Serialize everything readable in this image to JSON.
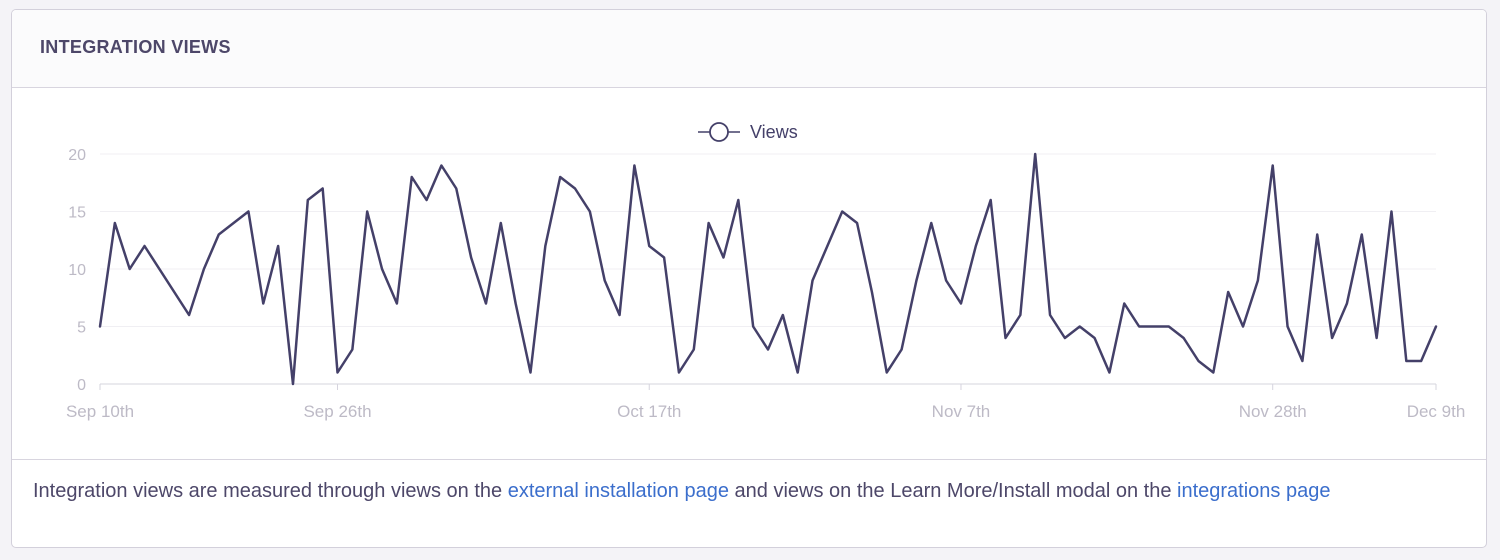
{
  "panel": {
    "title": "INTEGRATION VIEWS"
  },
  "footer": {
    "text_before": "Integration views are measured through views on the ",
    "link1": "external installation page",
    "text_middle": " and views on the Learn More/Install modal on the ",
    "link2": "integrations page"
  },
  "colors": {
    "line": "#444069",
    "axis_text": "#bdbac6",
    "grid": "#f0eff3",
    "legend_text": "#444069",
    "link": "#3b6ecc"
  },
  "chart_data": {
    "type": "line",
    "title": "",
    "xlabel": "",
    "ylabel": "",
    "legend": [
      "Views"
    ],
    "legend_position": "top-center",
    "grid": true,
    "ylim": [
      0,
      20
    ],
    "y_ticks": [
      0,
      5,
      10,
      15,
      20
    ],
    "x_tick_labels": [
      {
        "label": "Sep 10th",
        "date": "2017-09-10"
      },
      {
        "label": "Sep 26th",
        "date": "2017-09-26"
      },
      {
        "label": "Oct 17th",
        "date": "2017-10-17"
      },
      {
        "label": "Nov 7th",
        "date": "2017-11-07"
      },
      {
        "label": "Nov 28th",
        "date": "2017-11-28"
      },
      {
        "label": "Dec 9th",
        "date": "2017-12-09"
      }
    ],
    "series": [
      {
        "name": "Views",
        "points": [
          [
            "2017-09-10",
            5
          ],
          [
            "2017-09-11",
            14
          ],
          [
            "2017-09-12",
            10
          ],
          [
            "2017-09-13",
            12
          ],
          [
            "2017-09-16",
            6
          ],
          [
            "2017-09-17",
            10
          ],
          [
            "2017-09-18",
            13
          ],
          [
            "2017-09-20",
            15
          ],
          [
            "2017-09-21",
            7
          ],
          [
            "2017-09-22",
            12
          ],
          [
            "2017-09-23",
            0
          ],
          [
            "2017-09-24",
            16
          ],
          [
            "2017-09-25",
            17
          ],
          [
            "2017-09-26",
            1
          ],
          [
            "2017-09-27",
            3
          ],
          [
            "2017-09-28",
            15
          ],
          [
            "2017-09-29",
            10
          ],
          [
            "2017-09-30",
            7
          ],
          [
            "2017-10-01",
            18
          ],
          [
            "2017-10-02",
            16
          ],
          [
            "2017-10-03",
            19
          ],
          [
            "2017-10-04",
            17
          ],
          [
            "2017-10-05",
            11
          ],
          [
            "2017-10-06",
            7
          ],
          [
            "2017-10-07",
            14
          ],
          [
            "2017-10-08",
            7
          ],
          [
            "2017-10-09",
            1
          ],
          [
            "2017-10-10",
            12
          ],
          [
            "2017-10-11",
            18
          ],
          [
            "2017-10-12",
            17
          ],
          [
            "2017-10-13",
            15
          ],
          [
            "2017-10-14",
            9
          ],
          [
            "2017-10-15",
            6
          ],
          [
            "2017-10-16",
            19
          ],
          [
            "2017-10-17",
            12
          ],
          [
            "2017-10-18",
            11
          ],
          [
            "2017-10-19",
            1
          ],
          [
            "2017-10-20",
            3
          ],
          [
            "2017-10-21",
            14
          ],
          [
            "2017-10-22",
            11
          ],
          [
            "2017-10-23",
            16
          ],
          [
            "2017-10-24",
            5
          ],
          [
            "2017-10-25",
            3
          ],
          [
            "2017-10-26",
            6
          ],
          [
            "2017-10-27",
            1
          ],
          [
            "2017-10-28",
            9
          ],
          [
            "2017-10-30",
            15
          ],
          [
            "2017-10-31",
            14
          ],
          [
            "2017-11-01",
            8
          ],
          [
            "2017-11-02",
            1
          ],
          [
            "2017-11-03",
            3
          ],
          [
            "2017-11-04",
            9
          ],
          [
            "2017-11-05",
            14
          ],
          [
            "2017-11-06",
            9
          ],
          [
            "2017-11-07",
            7
          ],
          [
            "2017-11-08",
            12
          ],
          [
            "2017-11-09",
            16
          ],
          [
            "2017-11-10",
            4
          ],
          [
            "2017-11-11",
            6
          ],
          [
            "2017-11-12",
            20
          ],
          [
            "2017-11-13",
            6
          ],
          [
            "2017-11-14",
            4
          ],
          [
            "2017-11-15",
            5
          ],
          [
            "2017-11-16",
            4
          ],
          [
            "2017-11-17",
            1
          ],
          [
            "2017-11-18",
            7
          ],
          [
            "2017-11-19",
            5
          ],
          [
            "2017-11-21",
            5
          ],
          [
            "2017-11-22",
            4
          ],
          [
            "2017-11-23",
            2
          ],
          [
            "2017-11-24",
            1
          ],
          [
            "2017-11-25",
            8
          ],
          [
            "2017-11-26",
            5
          ],
          [
            "2017-11-27",
            9
          ],
          [
            "2017-11-28",
            19
          ],
          [
            "2017-11-29",
            5
          ],
          [
            "2017-11-30",
            2
          ],
          [
            "2017-12-01",
            13
          ],
          [
            "2017-12-02",
            4
          ],
          [
            "2017-12-03",
            7
          ],
          [
            "2017-12-04",
            13
          ],
          [
            "2017-12-05",
            4
          ],
          [
            "2017-12-06",
            15
          ],
          [
            "2017-12-07",
            2
          ],
          [
            "2017-12-08",
            2
          ],
          [
            "2017-12-09",
            5
          ]
        ]
      }
    ]
  }
}
